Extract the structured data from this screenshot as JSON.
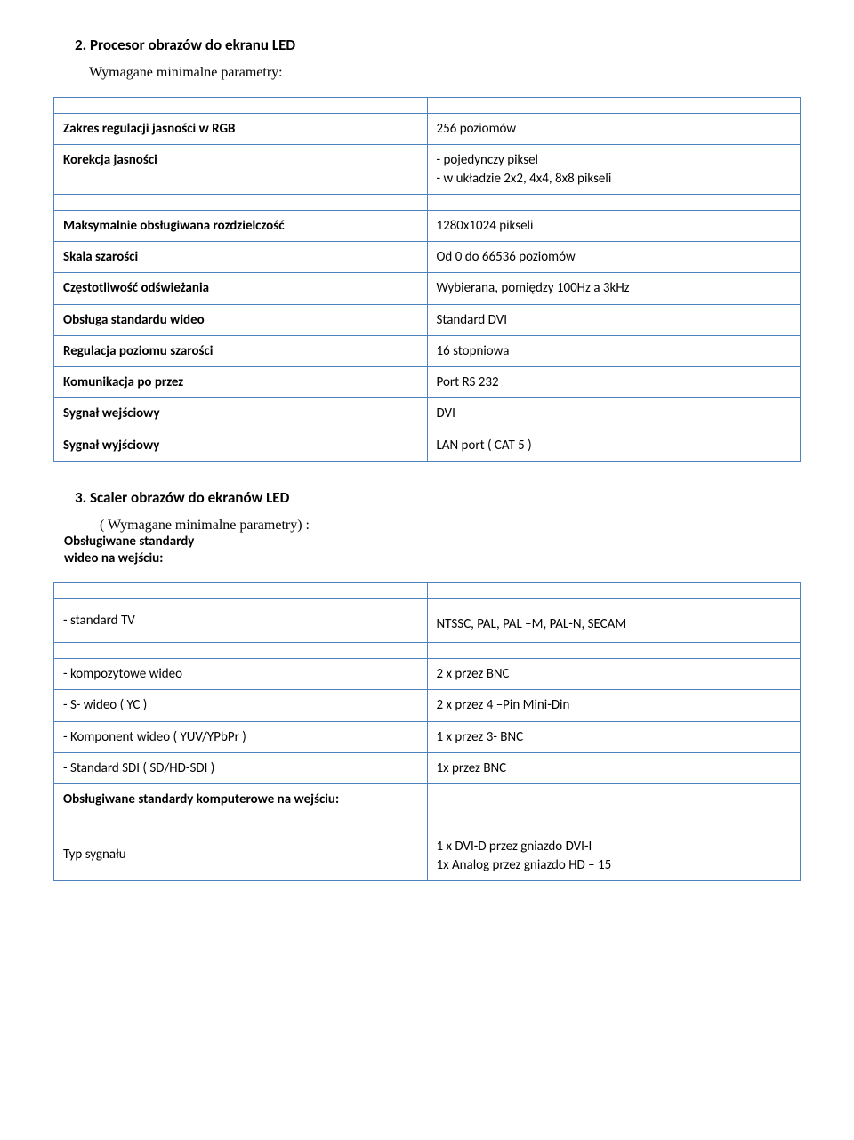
{
  "section2": {
    "heading": "2.  Procesor obrazów  do ekranu LED",
    "subheading": "Wymagane minimalne parametry:",
    "rows": [
      {
        "label": "Zakres regulacji jasności w RGB",
        "value": "256 poziomów"
      },
      {
        "label": "Korekcja jasności",
        "value": "- pojedynczy piksel\n- w układzie 2x2, 4x4, 8x8 pikseli"
      },
      {
        "label": "Maksymalnie obsługiwana rozdzielczość",
        "value": "1280x1024 pikseli"
      },
      {
        "label": "Skala szarości",
        "value": "Od 0 do 66536 poziomów"
      },
      {
        "label": "Częstotliwość odświeżania",
        "value": "Wybierana, pomiędzy 100Hz a 3kHz"
      },
      {
        "label": "Obsługa standardu wideo",
        "value": "Standard DVI"
      },
      {
        "label": "Regulacja poziomu szarości",
        "value": "16 stopniowa"
      },
      {
        "label": "Komunikacja po przez",
        "value": "Port RS 232"
      },
      {
        "label": "Sygnał wejściowy",
        "value": "DVI"
      },
      {
        "label": "Sygnał wyjściowy",
        "value": "LAN port ( CAT 5 )"
      }
    ]
  },
  "section3": {
    "heading": "3. Scaler obrazów do ekranów LED",
    "subheading": "( Wymagane minimalne parametry) :",
    "obs_label": "Obsługiwane standardy\n wideo na wejściu:",
    "rows_a": [
      {
        "label": "- standard TV",
        "value": "NTSSC, PAL, PAL –M, PAL-N, SECAM",
        "pad": true
      }
    ],
    "rows_b": [
      {
        "label": "- kompozytowe  wideo",
        "value": "2 x przez BNC"
      },
      {
        "label": "- S- wideo ( YC )",
        "value": "2 x przez 4 –Pin Mini-Din"
      },
      {
        "label": "- Komponent wideo ( YUV/YPbPr )",
        "value": "1 x przez 3- BNC"
      },
      {
        "label": "- Standard SDI ( SD/HD-SDI )",
        "value": "1x przez BNC"
      },
      {
        "label": "Obsługiwane standardy komputerowe na wejściu:",
        "value": "",
        "bold": true
      }
    ],
    "rows_c": [
      {
        "label": "Typ sygnału",
        "value": "1 x DVI-D przez gniazdo DVI-I\n1x Analog przez gniazdo HD – 15"
      }
    ]
  },
  "colors": {
    "border": "#4f81bd",
    "text": "#000000",
    "background": "#ffffff"
  }
}
